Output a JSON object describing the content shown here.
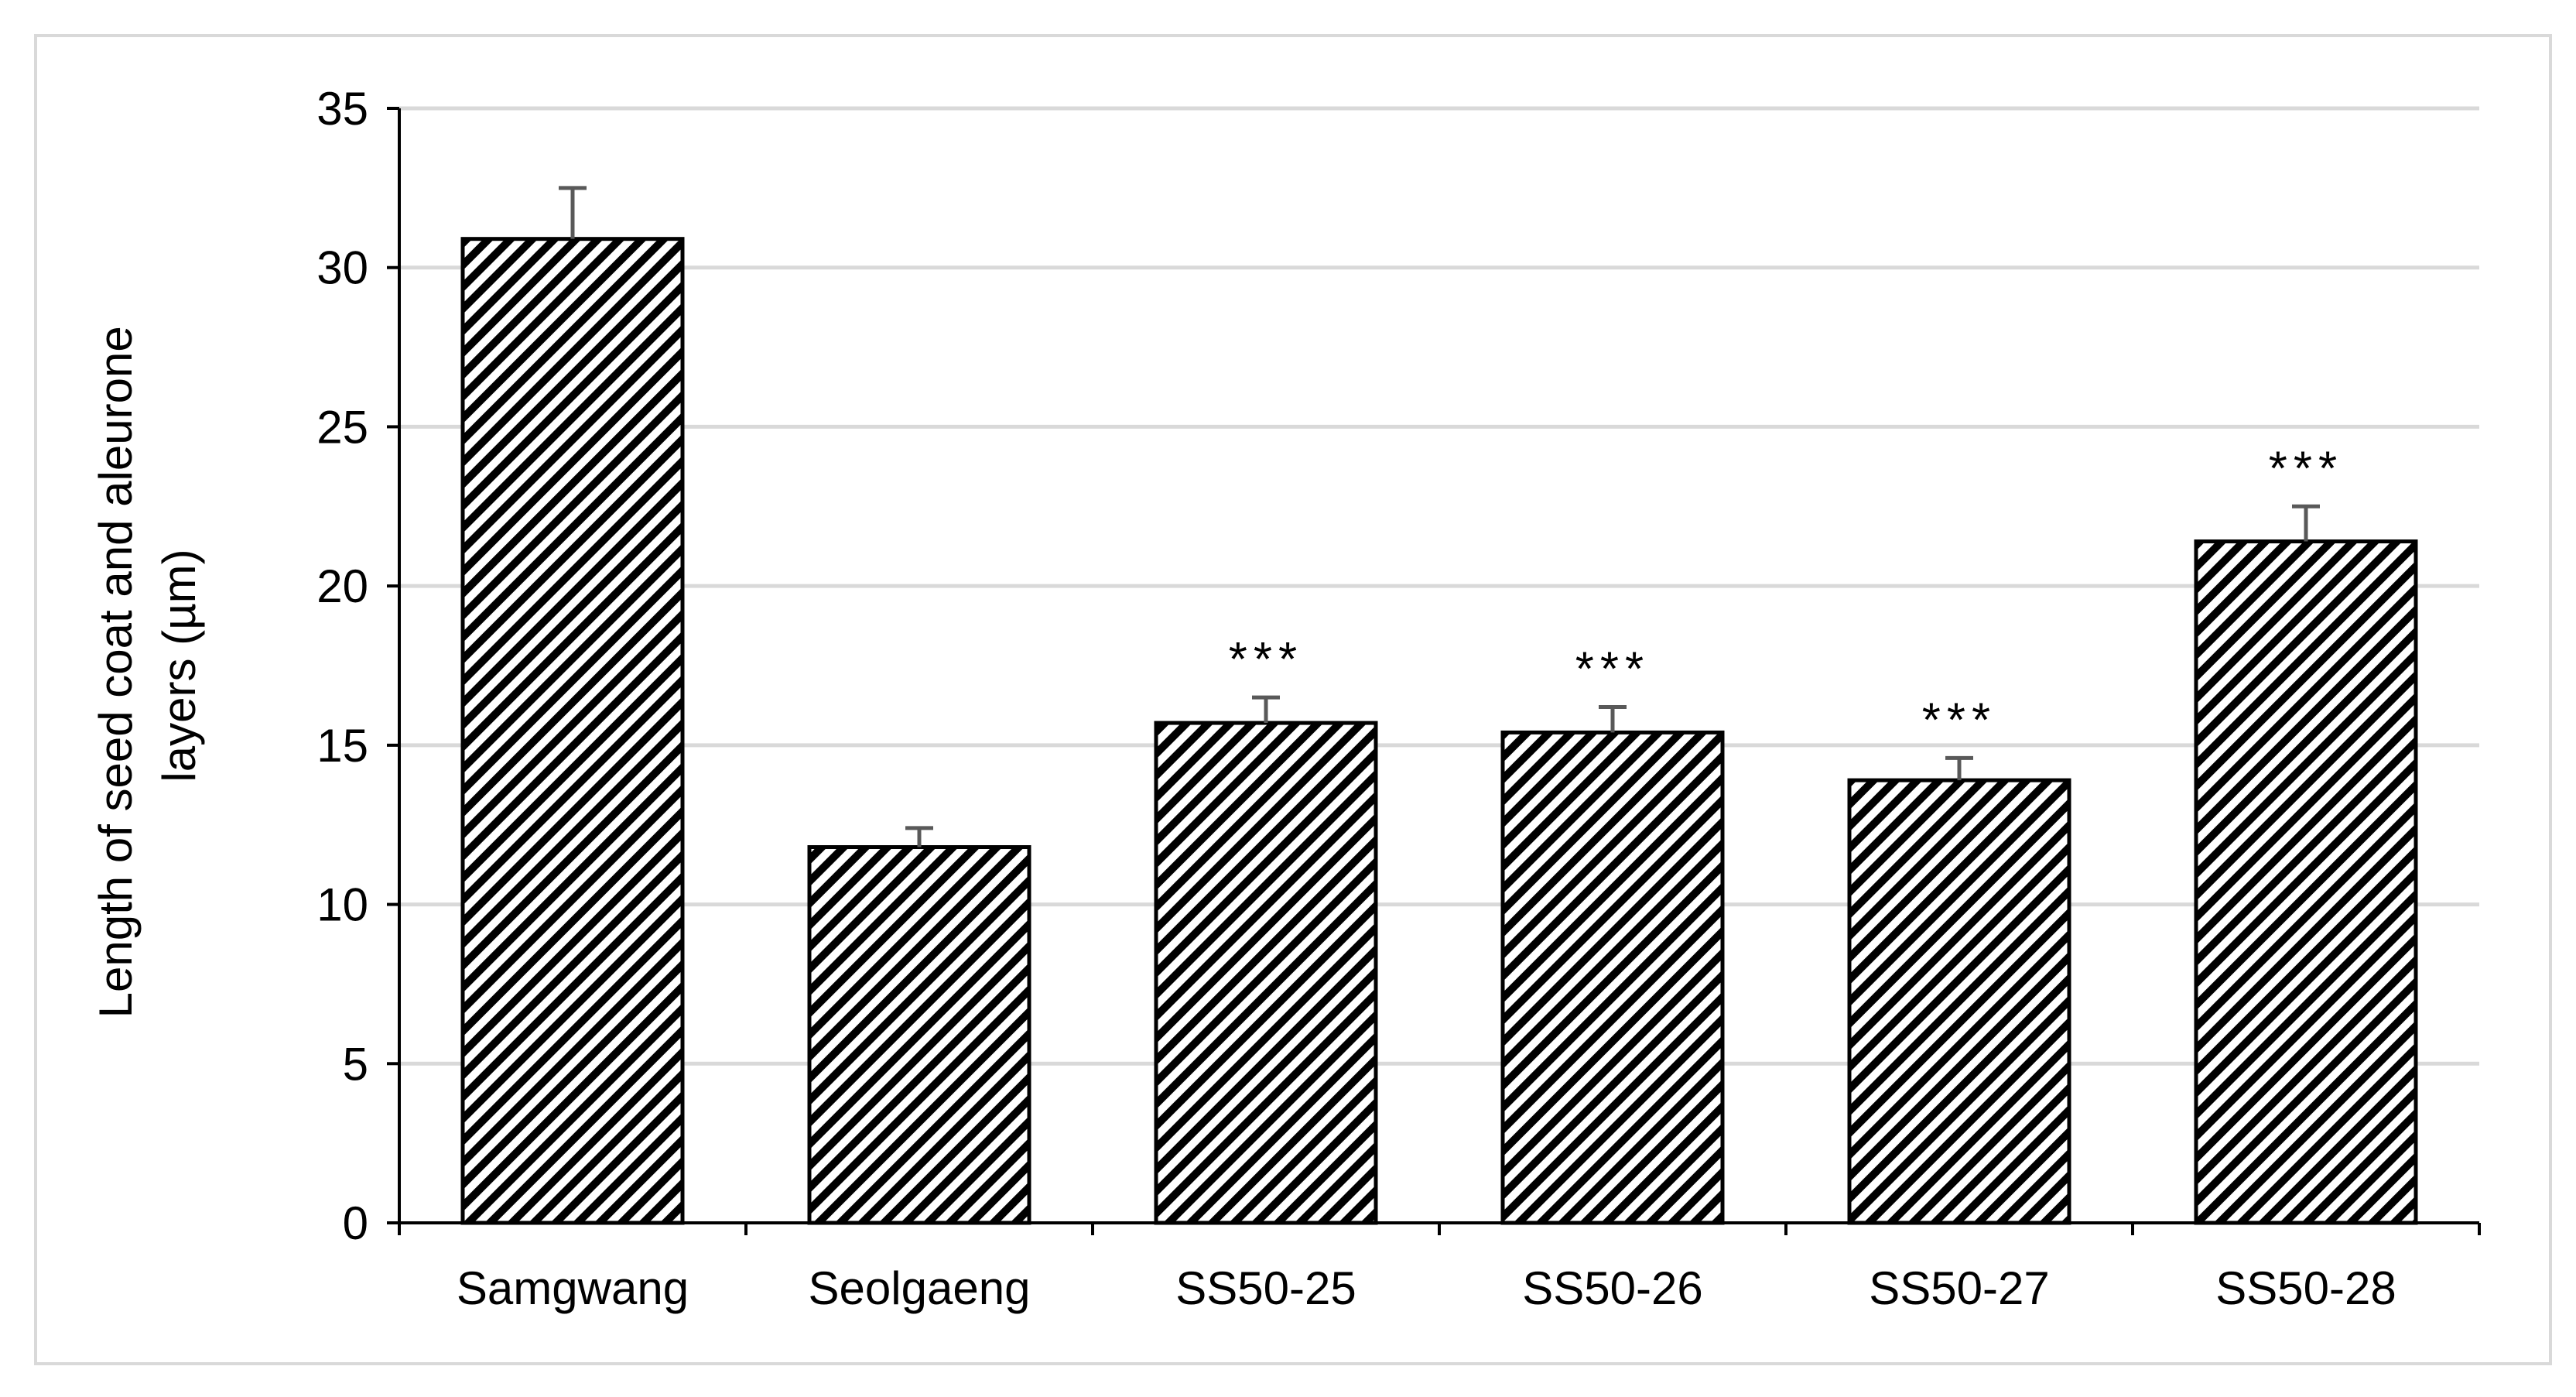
{
  "chart_data": {
    "type": "bar",
    "categories": [
      "Samgwang",
      "Seolgaeng",
      "SS50-25",
      "SS50-26",
      "SS50-27",
      "SS50-28"
    ],
    "values": [
      30.9,
      11.8,
      15.7,
      15.4,
      13.9,
      21.4
    ],
    "error": [
      1.6,
      0.6,
      0.8,
      0.8,
      0.7,
      1.1
    ],
    "annotations": [
      "",
      "",
      "***",
      "***",
      "***",
      "***"
    ],
    "title": "",
    "xlabel": "",
    "ylabel_lines": [
      "Length of seed coat and aleurone",
      "layers (µm)"
    ],
    "ylim": [
      0,
      35
    ],
    "yticks": [
      "0",
      "5",
      "10",
      "15",
      "20",
      "25",
      "30",
      "35"
    ],
    "grid": true,
    "bar_pattern": "diagonal-hatch",
    "colors": {
      "bar_fill": "#ffffff",
      "hatch": "#000000",
      "bar_edge": "#000000",
      "grid": "#d9d9d9",
      "axis": "#000000",
      "error_bar": "#595959"
    }
  }
}
